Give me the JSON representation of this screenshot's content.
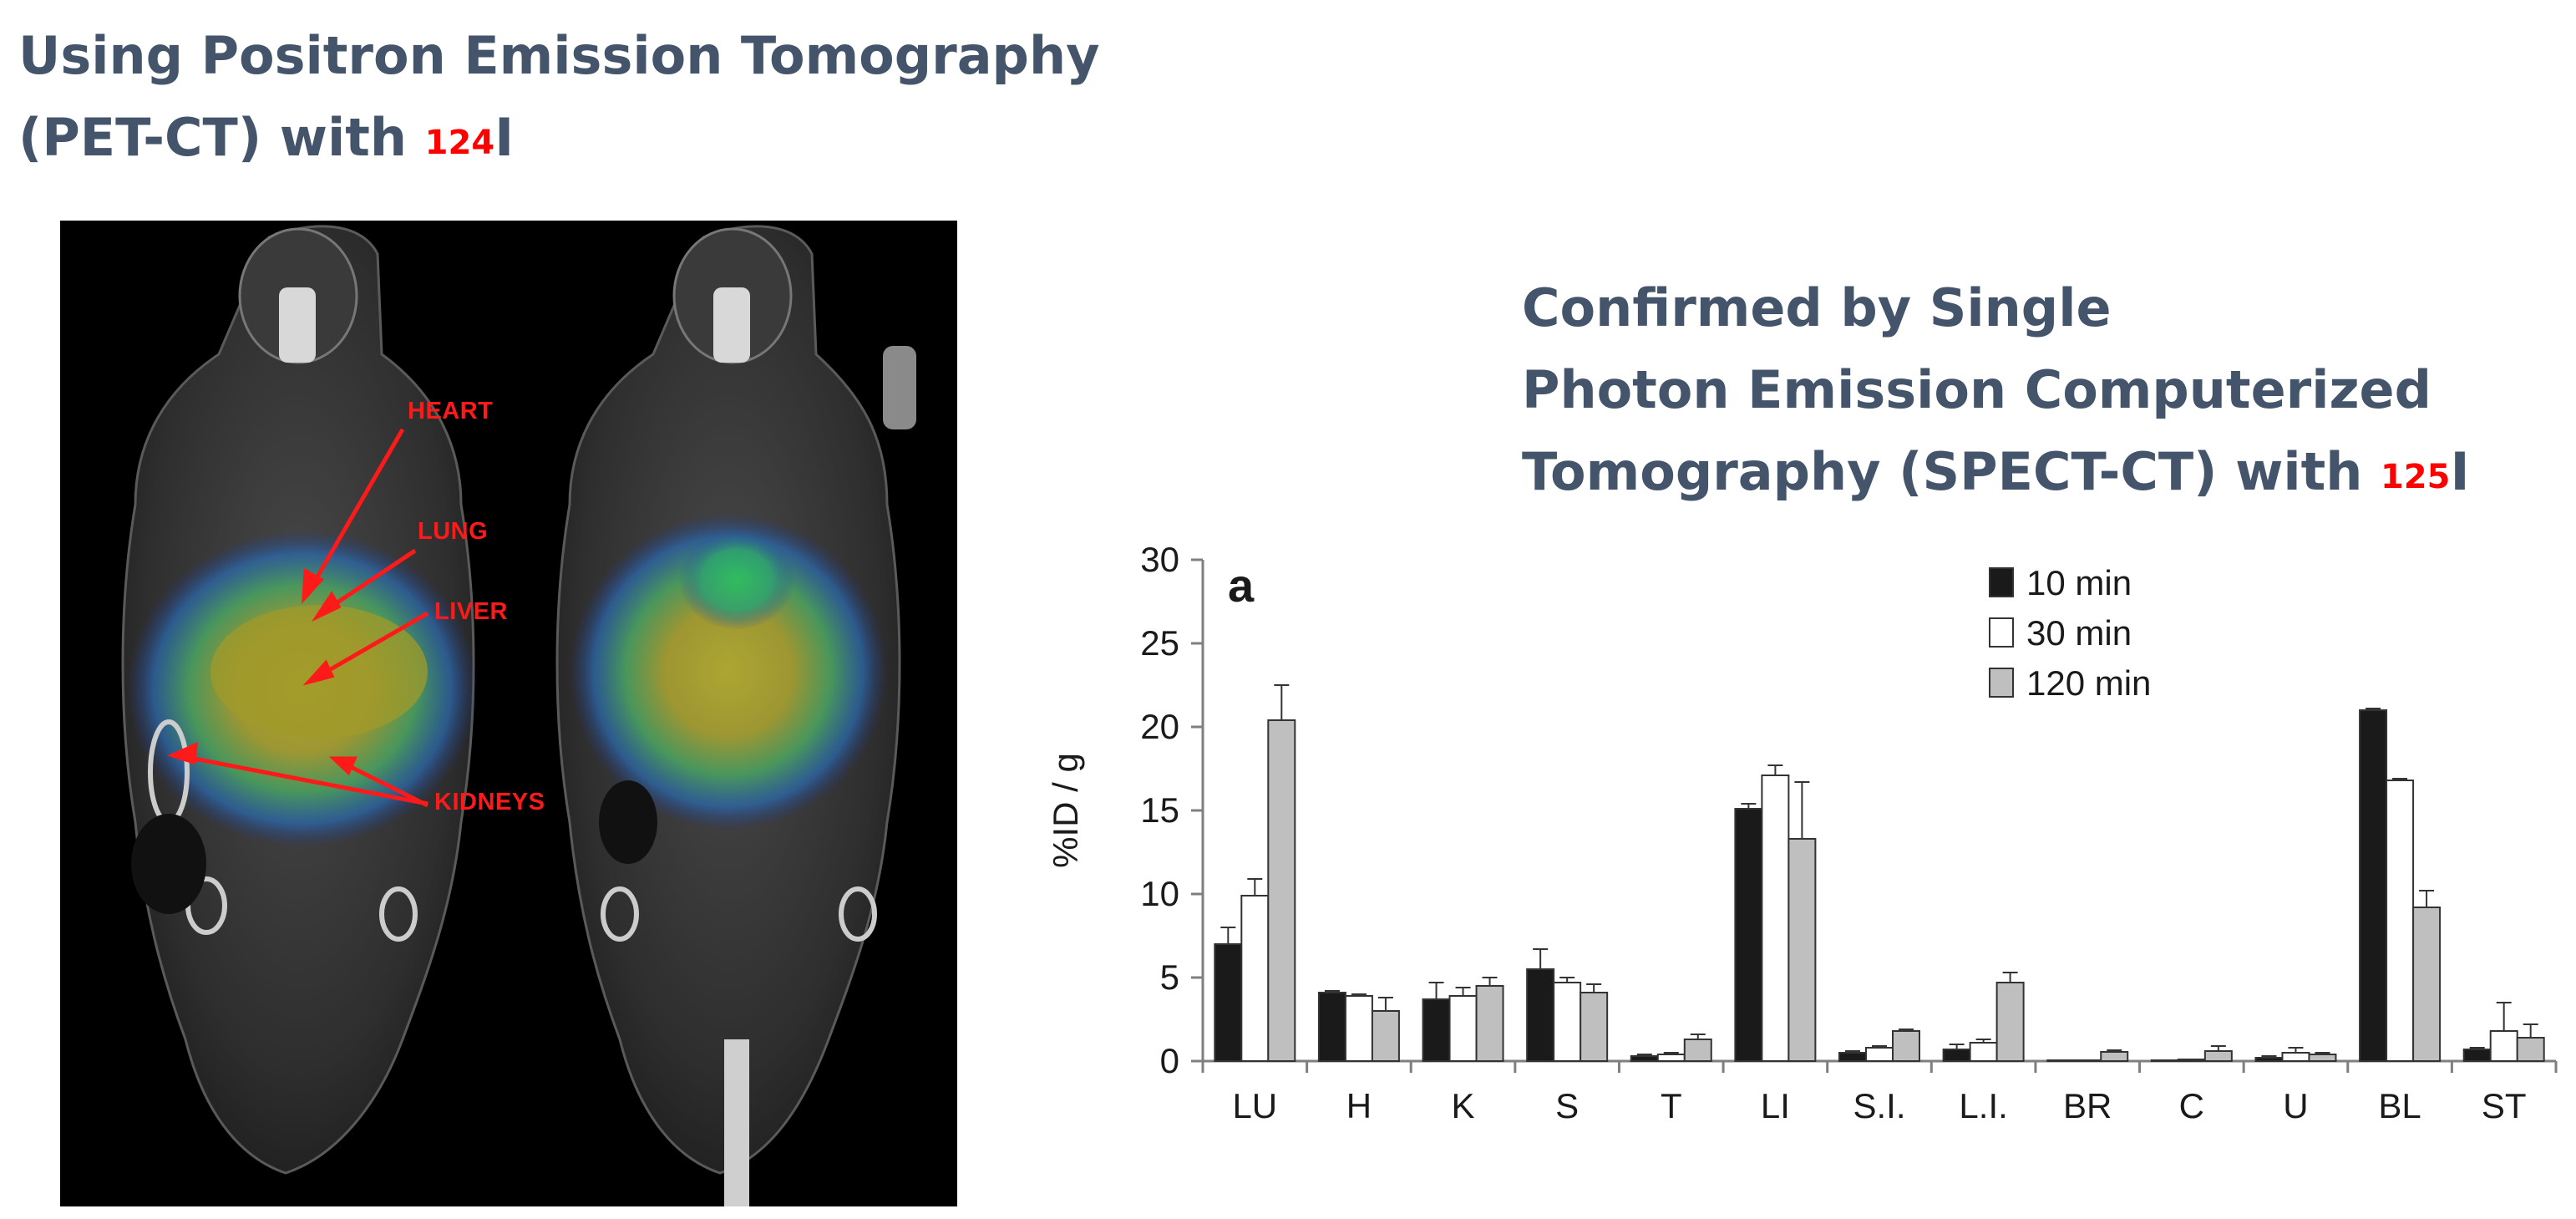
{
  "heading_left": {
    "line1": "Using Positron Emission Tomography",
    "line2": "(PET-CT) with ",
    "isotope_mass": "124",
    "isotope_symbol": "I"
  },
  "heading_right": {
    "line1": "Confirmed by Single",
    "line2": "Photon Emission Computerized",
    "line3": "Tomography (SPECT-CT) with ",
    "isotope_mass": "125",
    "isotope_symbol": "I"
  },
  "pet_image": {
    "labels": {
      "heart": "HEART",
      "lung": "LUNG",
      "liver": "LIVER",
      "kidneys": "KIDNEYS"
    }
  },
  "chart_data": {
    "type": "bar",
    "panel_label": "a",
    "title": "",
    "xlabel": "",
    "ylabel": "%ID / g",
    "ylim": [
      0,
      30
    ],
    "yticks": [
      "0",
      "5",
      "10",
      "15",
      "20",
      "25",
      "30"
    ],
    "grid": false,
    "legend_position": "top-right",
    "categories": [
      "LU",
      "H",
      "K",
      "S",
      "T",
      "LI",
      "S.I.",
      "L.I.",
      "BR",
      "C",
      "U",
      "BL",
      "ST"
    ],
    "series": [
      {
        "name": "10 min",
        "color": "#1a1a1a",
        "values": [
          7.0,
          4.1,
          3.7,
          5.5,
          0.3,
          15.1,
          0.5,
          0.7,
          0.05,
          0.05,
          0.2,
          21.0,
          0.7
        ],
        "errors": [
          1.0,
          0.1,
          1.0,
          1.2,
          0.1,
          0.3,
          0.1,
          0.3,
          0.02,
          0.02,
          0.1,
          0.1,
          0.1
        ]
      },
      {
        "name": "30 min",
        "color": "#ffffff",
        "values": [
          9.9,
          3.9,
          3.9,
          4.7,
          0.4,
          17.1,
          0.8,
          1.1,
          0.05,
          0.1,
          0.5,
          16.8,
          1.8
        ],
        "errors": [
          1.0,
          0.1,
          0.5,
          0.3,
          0.1,
          0.6,
          0.1,
          0.2,
          0.02,
          0.05,
          0.3,
          0.1,
          1.7
        ]
      },
      {
        "name": "120 min",
        "color": "#bfbfbf",
        "values": [
          20.4,
          3.0,
          4.5,
          4.1,
          1.3,
          13.3,
          1.8,
          4.7,
          0.55,
          0.6,
          0.4,
          9.2,
          1.4
        ],
        "errors": [
          2.1,
          0.8,
          0.5,
          0.5,
          0.3,
          3.4,
          0.1,
          0.6,
          0.1,
          0.3,
          0.1,
          1.0,
          0.8
        ]
      }
    ],
    "colors": {
      "axis": "#7f7f7f",
      "bar_outline": "#333333",
      "text": "#1a1a1a"
    }
  }
}
